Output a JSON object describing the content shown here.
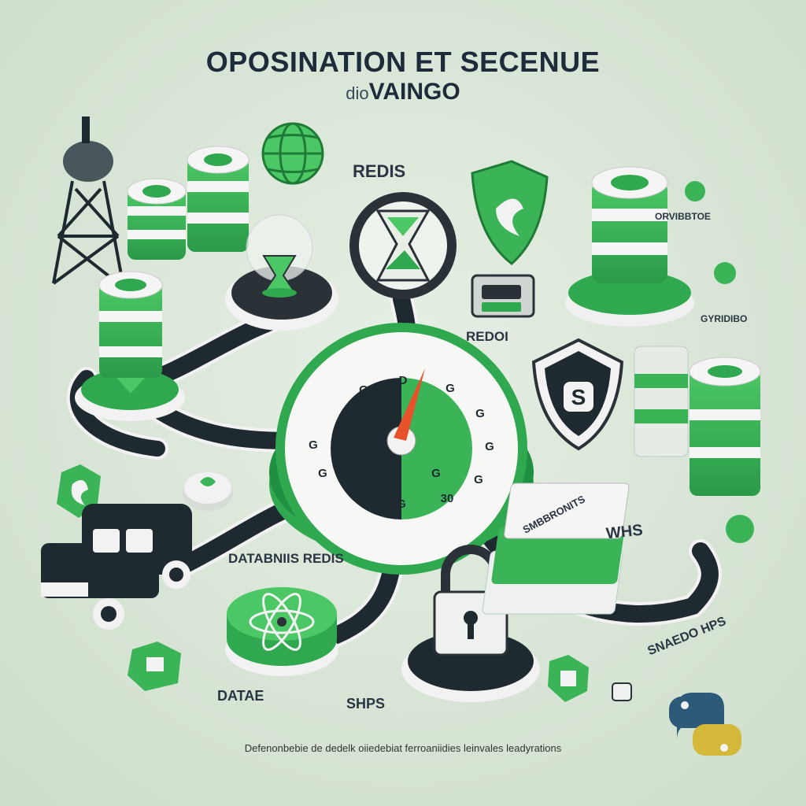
{
  "header": {
    "title": "OPOSINATION ET SECENUE",
    "subtitle_prefix": "dio",
    "subtitle": "VAINGO"
  },
  "labels": {
    "redis_top": "REDIS",
    "redis_mid": "REDOI",
    "redis_bottom": "DATABNIIS REDIS",
    "side_top": "ORVIBBTOE",
    "side_mid": "GYRIDIBO",
    "side_lower": "SMBBRONITS",
    "right_bottom": "SNAEDO HPS",
    "data_bottom": "DATAE",
    "hps_bottom": "SHPS",
    "card_text": "WHS"
  },
  "gauge": {
    "tick_labels": [
      "D",
      "G",
      "G",
      "G",
      "G",
      "G",
      "G",
      "G",
      "G",
      "30",
      "G",
      "G"
    ]
  },
  "footer": {
    "text": "Defenonbebie de dedelk oiiedebiat ferroaniidies leinvales leadyrations"
  },
  "colors": {
    "green": "#2fa84f",
    "light_green": "#4cc766",
    "dark": "#1f2a30",
    "accent": "#e8522b"
  }
}
